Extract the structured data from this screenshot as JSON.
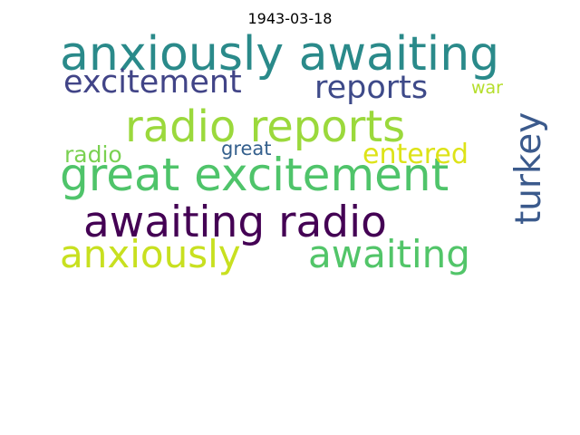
{
  "title": "1943-03-18",
  "cloud": {
    "words": [
      {
        "text": "anxiously awaiting",
        "color": "#2a8a8a",
        "orientation": "horizontal"
      },
      {
        "text": "radio reports",
        "color": "#9bd93c",
        "orientation": "horizontal"
      },
      {
        "text": "great excitement",
        "color": "#4fc46a",
        "orientation": "horizontal"
      },
      {
        "text": "awaiting radio",
        "color": "#440154",
        "orientation": "horizontal"
      },
      {
        "text": "anxiously",
        "color": "#c8e020",
        "orientation": "horizontal"
      },
      {
        "text": "awaiting",
        "color": "#52c569",
        "orientation": "horizontal"
      },
      {
        "text": "excitement",
        "color": "#414487",
        "orientation": "horizontal"
      },
      {
        "text": "reports",
        "color": "#3e4a89",
        "orientation": "horizontal"
      },
      {
        "text": "turkey",
        "color": "#3b5a8c",
        "orientation": "vertical"
      },
      {
        "text": "radio",
        "color": "#7ad151",
        "orientation": "horizontal"
      },
      {
        "text": "great",
        "color": "#35608d",
        "orientation": "horizontal"
      },
      {
        "text": "entered",
        "color": "#dde318",
        "orientation": "horizontal"
      },
      {
        "text": "war",
        "color": "#b5de2b",
        "orientation": "horizontal"
      }
    ]
  }
}
